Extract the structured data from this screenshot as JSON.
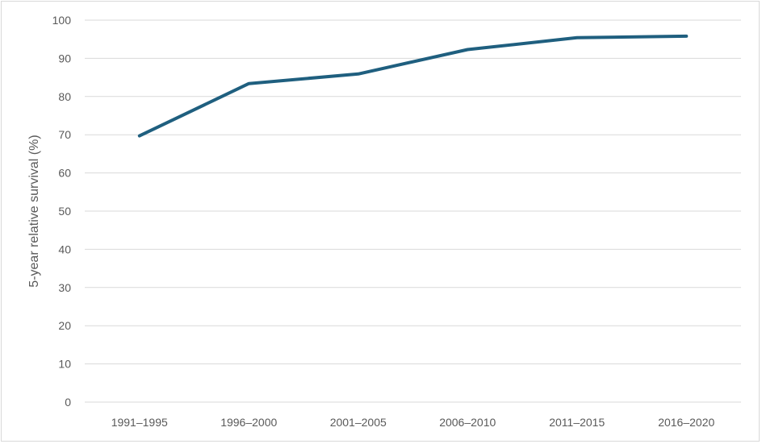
{
  "chart_data": {
    "type": "line",
    "title": "",
    "xlabel": "",
    "ylabel": "5-year relative survival (%)",
    "categories": [
      "1991–1995",
      "1996–2000",
      "2001–2005",
      "2006–2010",
      "2011–2015",
      "2016–2020"
    ],
    "series": [
      {
        "values": [
          69.7,
          83.4,
          85.9,
          92.3,
          95.4,
          95.8
        ]
      }
    ],
    "ylim": [
      0,
      100
    ],
    "yticks": [
      0,
      10,
      20,
      30,
      40,
      50,
      60,
      70,
      80,
      90,
      100
    ],
    "grid": true,
    "legend": "none",
    "colors": {
      "line": "#1f5f7f",
      "grid": "#d9d9d9",
      "text": "#595959"
    }
  }
}
